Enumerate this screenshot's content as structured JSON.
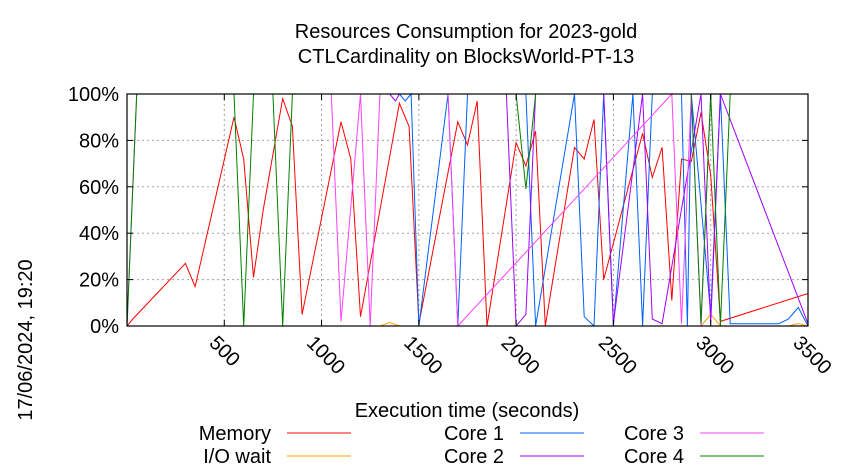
{
  "chart_data": {
    "type": "line",
    "title": [
      "Resources Consumption for 2023-gold",
      "CTLCardinality on BlocksWorld-PT-13"
    ],
    "xlabel": "Execution time (seconds)",
    "ylabel": "",
    "xlim": [
      0,
      3500
    ],
    "ylim": [
      0,
      100
    ],
    "x_ticks": [
      500,
      1000,
      1500,
      2000,
      2500,
      3000,
      3500
    ],
    "x_tick_labels": [
      "500",
      "1000",
      "1500",
      "2000",
      "2500",
      "3000",
      "3500"
    ],
    "y_ticks": [
      0,
      20,
      40,
      60,
      80,
      100
    ],
    "y_tick_labels": [
      "0%",
      "20%",
      "40%",
      "60%",
      "80%",
      "100%"
    ],
    "grid": true,
    "legend_position": "bottom",
    "timestamp": "17/06/2024, 19:20",
    "series": [
      {
        "name": "Memory",
        "color": "#ff0000",
        "x": [
          0,
          30,
          300,
          350,
          550,
          600,
          650,
          700,
          800,
          850,
          900,
          1100,
          1150,
          1200,
          1400,
          1450,
          1500,
          1700,
          1750,
          1800,
          1850,
          2000,
          2050,
          2100,
          2150,
          2300,
          2350,
          2400,
          2450,
          2650,
          2700,
          2750,
          2800,
          2850,
          2900,
          2950,
          3000,
          3050,
          3500
        ],
        "y": [
          0,
          3,
          27,
          17,
          90,
          72,
          21,
          50,
          98,
          86,
          5,
          88,
          72,
          4,
          96,
          86,
          1,
          88,
          78,
          97,
          0,
          79,
          69,
          84,
          0,
          77,
          72,
          89,
          20,
          83,
          64,
          77,
          11,
          72,
          71,
          92,
          65,
          2,
          14
        ]
      },
      {
        "name": "I/O wait",
        "color": "#ffa000",
        "x": [
          0,
          1300,
          1350,
          1400,
          2950,
          3000,
          3050,
          3400,
          3450,
          3500
        ],
        "y": [
          0,
          0,
          1.5,
          0,
          0,
          5,
          0,
          0,
          1,
          0
        ]
      },
      {
        "name": "Core 1",
        "color": "#0060ff",
        "x": [
          1400,
          1430,
          1460,
          1500,
          1650,
          1700,
          1750,
          2050,
          2100,
          2300,
          2350,
          2400,
          2450,
          2500,
          2600,
          2650,
          2700,
          2850,
          2880,
          2900,
          3000,
          3050,
          3100,
          3350,
          3400,
          3450,
          3500
        ],
        "y": [
          100,
          97,
          100,
          0,
          100,
          0,
          100,
          100,
          0,
          100,
          4,
          0,
          100,
          0,
          100,
          0,
          100,
          100,
          0,
          100,
          5,
          100,
          1,
          1,
          3,
          8,
          0
        ]
      },
      {
        "name": "Core 2",
        "color": "#a000ff",
        "x": [
          1350,
          1380,
          1400,
          1950,
          2000,
          2050,
          2100,
          2450,
          2500,
          2650,
          2700,
          2750,
          2950,
          3000,
          3050,
          3500
        ],
        "y": [
          100,
          97,
          100,
          100,
          0,
          5,
          100,
          100,
          1,
          100,
          3,
          1,
          100,
          1,
          100,
          1
        ]
      },
      {
        "name": "Core 3",
        "color": "#ff40ff",
        "x": [
          0,
          50,
          500,
          800,
          850,
          900,
          1000,
          1050,
          1100,
          1200,
          1250,
          1300,
          1650,
          1700,
          2800,
          2850,
          2900,
          2950,
          3000,
          3050,
          3100,
          3500
        ],
        "y": [
          0,
          100,
          100,
          100,
          100,
          100,
          100,
          100,
          2,
          100,
          0,
          100,
          100,
          0,
          100,
          1,
          100,
          0,
          100,
          100,
          100,
          100
        ]
      },
      {
        "name": "Core 4",
        "color": "#008000",
        "x": [
          0,
          50,
          550,
          600,
          650,
          750,
          800,
          850,
          1100,
          1150,
          1200,
          2000,
          2050,
          2100,
          2900,
          2950,
          3000,
          3050,
          3100,
          3500
        ],
        "y": [
          0,
          100,
          100,
          0,
          100,
          100,
          0,
          100,
          100,
          100,
          100,
          100,
          59,
          100,
          100,
          1,
          100,
          0,
          100,
          100
        ]
      }
    ]
  }
}
